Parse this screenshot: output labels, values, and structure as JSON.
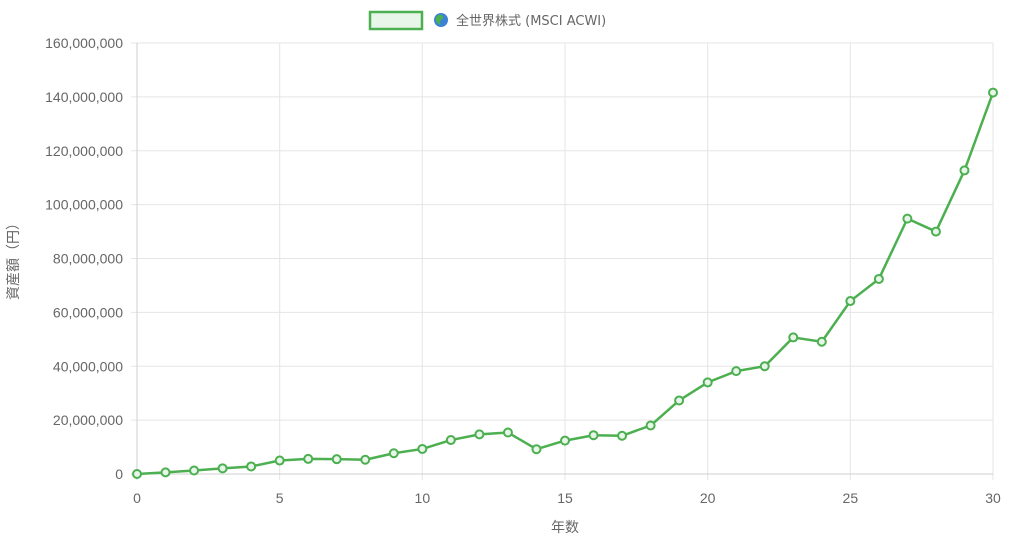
{
  "chart_data": {
    "type": "line",
    "xlabel": "年数",
    "ylabel": "資産額（円）",
    "xlim": [
      0,
      30
    ],
    "ylim": [
      0,
      160000000
    ],
    "x_ticks": [
      "0",
      "5",
      "10",
      "15",
      "20",
      "25",
      "30"
    ],
    "y_ticks": [
      "0",
      "20,000,000",
      "40,000,000",
      "60,000,000",
      "80,000,000",
      "100,000,000",
      "120,000,000",
      "140,000,000",
      "160,000,000"
    ],
    "grid": true,
    "legend_position": "top",
    "series": [
      {
        "name": "全世界株式 (MSCI ACWI)",
        "legend_icon": "globe-icon",
        "color": "#4caf50",
        "fill": "#e8f5e9",
        "x": [
          0,
          1,
          2,
          3,
          4,
          5,
          6,
          7,
          8,
          9,
          10,
          11,
          12,
          13,
          14,
          15,
          16,
          17,
          18,
          19,
          20,
          21,
          22,
          23,
          24,
          25,
          26,
          27,
          28,
          29,
          30
        ],
        "values": [
          0,
          600000,
          1300000,
          2100000,
          2800000,
          5000000,
          5600000,
          5500000,
          5300000,
          7700000,
          9300000,
          12600000,
          14700000,
          15400000,
          9200000,
          12400000,
          14400000,
          14200000,
          18000000,
          27300000,
          34000000,
          38200000,
          40000000,
          50700000,
          49100000,
          64200000,
          72400000,
          94800000,
          90000000,
          112700000,
          141600000
        ]
      }
    ]
  }
}
